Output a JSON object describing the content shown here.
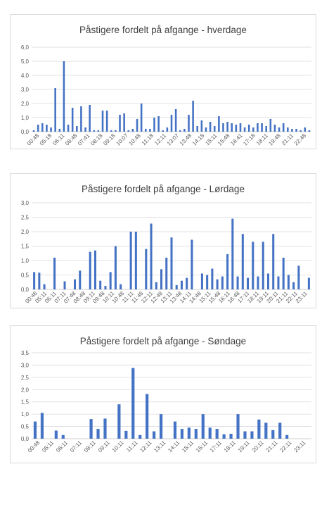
{
  "colors": {
    "bar": "#4472c4",
    "grid": "#d9d9d9",
    "axis": "#bfbfbf",
    "text": "#595959"
  },
  "chart_data": [
    {
      "type": "bar",
      "title": "Påstigere fordelt på afgange - hverdage",
      "ylim": [
        0,
        6
      ],
      "y_ticks": [
        "0,0",
        "1,0",
        "2,0",
        "3,0",
        "4,0",
        "5,0",
        "6,0"
      ],
      "x_tick_labels": [
        "00:48",
        "05:18",
        "06:11",
        "06:48",
        "07:41",
        "08:18",
        "09:18",
        "10:07",
        "10:48",
        "11:18",
        "12:11",
        "13:07",
        "13:48",
        "14:18",
        "15:11",
        "15:48",
        "16:41",
        "17:18",
        "18:11",
        "19:48",
        "21:11",
        "22:48"
      ],
      "values": [
        0.1,
        0.5,
        0.6,
        0.5,
        0.3,
        3.1,
        0.2,
        5.0,
        0.5,
        1.7,
        0.4,
        1.8,
        0.3,
        1.9,
        0.1,
        0.1,
        1.5,
        1.5,
        0.1,
        0.1,
        1.2,
        1.3,
        0.1,
        0.2,
        0.9,
        2.0,
        0.2,
        0.2,
        1.0,
        1.1,
        0.1,
        0.3,
        1.2,
        1.6,
        0.1,
        0.2,
        1.2,
        2.2,
        0.4,
        0.8,
        0.3,
        0.7,
        0.4,
        1.1,
        0.6,
        0.7,
        0.6,
        0.5,
        0.6,
        0.3,
        0.5,
        0.3,
        0.6,
        0.6,
        0.4,
        0.9,
        0.5,
        0.3,
        0.6,
        0.3,
        0.2,
        0.2,
        0.1,
        0.3,
        0.1
      ],
      "grid": true,
      "legend": "none"
    },
    {
      "type": "bar",
      "title": "Påstigere fordelt på afgange - Lørdage",
      "ylim": [
        0,
        3
      ],
      "y_ticks": [
        "0,0",
        "0,5",
        "1,0",
        "1,5",
        "2,0",
        "2,5",
        "3,0"
      ],
      "x_tick_labels": [
        "00:48",
        "05:11",
        "06:11",
        "07:11",
        "07:48",
        "08:48",
        "09:11",
        "09:48",
        "10:11",
        "10:48",
        "11:11",
        "11:48",
        "12:11",
        "12:48",
        "13:11",
        "13:48",
        "14:11",
        "14:48",
        "15:11",
        "15:48",
        "16:11",
        "16:48",
        "17:11",
        "18:11",
        "19:11",
        "20:11",
        "21:11",
        "22:11",
        "23:11"
      ],
      "values": [
        0.6,
        0.58,
        0.18,
        0,
        1.1,
        0,
        0.28,
        0,
        0.35,
        0.65,
        0,
        1.3,
        1.35,
        0.3,
        0.12,
        0.6,
        1.5,
        0.18,
        0,
        2.0,
        2.0,
        0,
        1.4,
        2.28,
        0.25,
        0.7,
        1.1,
        1.8,
        0.15,
        0.3,
        0.4,
        1.72,
        0,
        0.55,
        0.5,
        0.72,
        0.35,
        0.45,
        1.22,
        2.45,
        0.45,
        1.92,
        0.4,
        1.65,
        0.45,
        1.65,
        0.55,
        1.92,
        0.45,
        1.1,
        0.5,
        0.25,
        0.82,
        0,
        0.4
      ],
      "grid": true,
      "legend": "none"
    },
    {
      "type": "bar",
      "title": "Påstigere fordelt på afgange - Søndage",
      "ylim": [
        0,
        3.5
      ],
      "y_ticks": [
        "0,0",
        "0,5",
        "1,0",
        "1,5",
        "2,0",
        "2,5",
        "3,0",
        "3,5"
      ],
      "x_tick_labels": [
        "00:48",
        "05:11",
        "06:11",
        "07:11",
        "08:11",
        "09:11",
        "10:11",
        "11:11",
        "12:11",
        "13:11",
        "14:11",
        "15:11",
        "16:11",
        "17:11",
        "18:11",
        "19:11",
        "20:11",
        "21:11",
        "22:11",
        "23:11"
      ],
      "values": [
        0.7,
        1.05,
        0,
        0.33,
        0.15,
        0,
        0,
        0,
        0.8,
        0.4,
        0.82,
        0,
        1.4,
        0.32,
        2.88,
        0.15,
        1.82,
        0.3,
        1.0,
        0,
        0.7,
        0.4,
        0.45,
        0.4,
        1.0,
        0.45,
        0.4,
        0.18,
        0.2,
        1.0,
        0.3,
        0.3,
        0.78,
        0.65,
        0.35,
        0.65,
        0.15,
        0,
        0,
        0
      ],
      "grid": true,
      "legend": "none"
    }
  ]
}
